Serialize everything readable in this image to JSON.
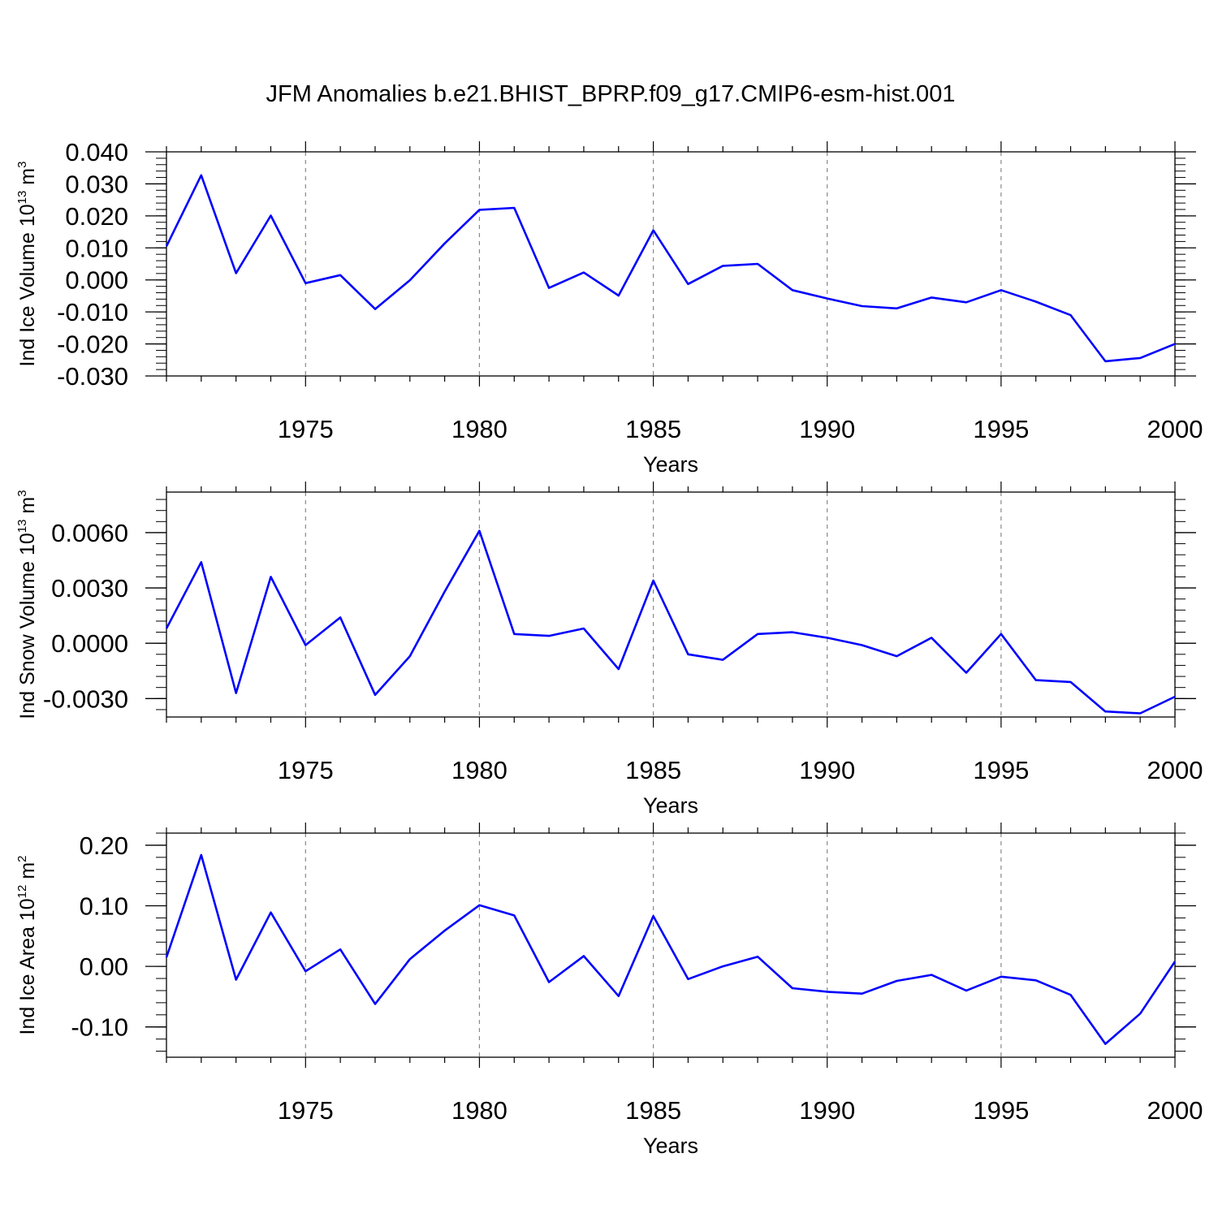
{
  "title": "JFM Anomalies b.e21.BHIST_BPRP.f09_g17.CMIP6-esm-hist.001",
  "colors": {
    "line": "#0000ff",
    "axis": "#000000",
    "grid": "#888888"
  },
  "chart_data": [
    {
      "type": "line",
      "ylabel": "Ind Ice Volume 10",
      "ylabel_exp": "13",
      "ylabel_unit": " m",
      "ylabel_unit_exp": "3",
      "xlabel": "Years",
      "xlim": [
        1971,
        2000
      ],
      "ylim": [
        -0.03,
        0.04
      ],
      "yticks": [
        0.04,
        0.03,
        0.02,
        0.01,
        0.0,
        -0.01,
        -0.02,
        -0.03
      ],
      "ytick_labels": [
        "0.040",
        "0.030",
        "0.020",
        "0.010",
        "0.000",
        "-0.010",
        "-0.020",
        "-0.030"
      ],
      "yminor_step": 0.002,
      "xticks": [
        1975,
        1980,
        1985,
        1990,
        1995,
        2000
      ],
      "xtick_labels": [
        "1975",
        "1980",
        "1985",
        "1990",
        "1995",
        "2000"
      ],
      "x": [
        1971,
        1972,
        1973,
        1974,
        1975,
        1976,
        1977,
        1978,
        1979,
        1980,
        1981,
        1982,
        1983,
        1984,
        1985,
        1986,
        1987,
        1988,
        1989,
        1990,
        1991,
        1992,
        1993,
        1994,
        1995,
        1996,
        1997,
        1998,
        1999,
        2000
      ],
      "values": [
        0.0105,
        0.0327,
        0.0021,
        0.0201,
        -0.001,
        0.0015,
        -0.0091,
        -0.0001,
        0.0114,
        0.0219,
        0.0225,
        -0.0025,
        0.0023,
        -0.0049,
        0.0155,
        -0.0013,
        0.0044,
        0.005,
        -0.0032,
        -0.0058,
        -0.0082,
        -0.0089,
        -0.0055,
        -0.007,
        -0.0032,
        -0.0068,
        -0.011,
        -0.0254,
        -0.0244,
        -0.02
      ]
    },
    {
      "type": "line",
      "ylabel": "Ind Snow Volume 10",
      "ylabel_exp": "13",
      "ylabel_unit": " m",
      "ylabel_unit_exp": "3",
      "xlabel": "Years",
      "xlim": [
        1971,
        2000
      ],
      "ylim": [
        -0.004,
        0.0082
      ],
      "yticks": [
        0.006,
        0.003,
        0.0,
        -0.003
      ],
      "ytick_labels": [
        "0.0060",
        "0.0030",
        "0.0000",
        "-0.0030"
      ],
      "yminor_step": 0.0006,
      "xticks": [
        1975,
        1980,
        1985,
        1990,
        1995,
        2000
      ],
      "xtick_labels": [
        "1975",
        "1980",
        "1985",
        "1990",
        "1995",
        "2000"
      ],
      "x": [
        1971,
        1972,
        1973,
        1974,
        1975,
        1976,
        1977,
        1978,
        1979,
        1980,
        1981,
        1982,
        1983,
        1984,
        1985,
        1986,
        1987,
        1988,
        1989,
        1990,
        1991,
        1992,
        1993,
        1994,
        1995,
        1996,
        1997,
        1998,
        1999,
        2000
      ],
      "values": [
        0.0008,
        0.0044,
        -0.0027,
        0.0036,
        -0.0001,
        0.0014,
        -0.0028,
        -0.0007,
        0.0028,
        0.0061,
        0.0005,
        0.0004,
        0.0008,
        -0.0014,
        0.0034,
        -0.0006,
        -0.0009,
        0.0005,
        0.0006,
        0.0003,
        -0.0001,
        -0.0007,
        0.0003,
        -0.0016,
        0.0005,
        -0.002,
        -0.0021,
        -0.0037,
        -0.0038,
        -0.0029
      ]
    },
    {
      "type": "line",
      "ylabel": "Ind Ice Area 10",
      "ylabel_exp": "12",
      "ylabel_unit": " m",
      "ylabel_unit_exp": "2",
      "xlabel": "Years",
      "xlim": [
        1971,
        2000
      ],
      "ylim": [
        -0.15,
        0.22
      ],
      "yticks": [
        0.2,
        0.1,
        0.0,
        -0.1
      ],
      "ytick_labels": [
        "0.20",
        "0.10",
        "0.00",
        "-0.10"
      ],
      "yminor_step": 0.02,
      "xticks": [
        1975,
        1980,
        1985,
        1990,
        1995,
        2000
      ],
      "xtick_labels": [
        "1975",
        "1980",
        "1985",
        "1990",
        "1995",
        "2000"
      ],
      "x": [
        1971,
        1972,
        1973,
        1974,
        1975,
        1976,
        1977,
        1978,
        1979,
        1980,
        1981,
        1982,
        1983,
        1984,
        1985,
        1986,
        1987,
        1988,
        1989,
        1990,
        1991,
        1992,
        1993,
        1994,
        1995,
        1996,
        1997,
        1998,
        1999,
        2000
      ],
      "values": [
        0.015,
        0.184,
        -0.022,
        0.089,
        -0.008,
        0.028,
        -0.062,
        0.012,
        0.059,
        0.101,
        0.084,
        -0.026,
        0.017,
        -0.049,
        0.083,
        -0.021,
        0.0,
        0.016,
        -0.036,
        -0.042,
        -0.045,
        -0.024,
        -0.014,
        -0.04,
        -0.017,
        -0.023,
        -0.047,
        -0.128,
        -0.078,
        0.008
      ]
    }
  ]
}
